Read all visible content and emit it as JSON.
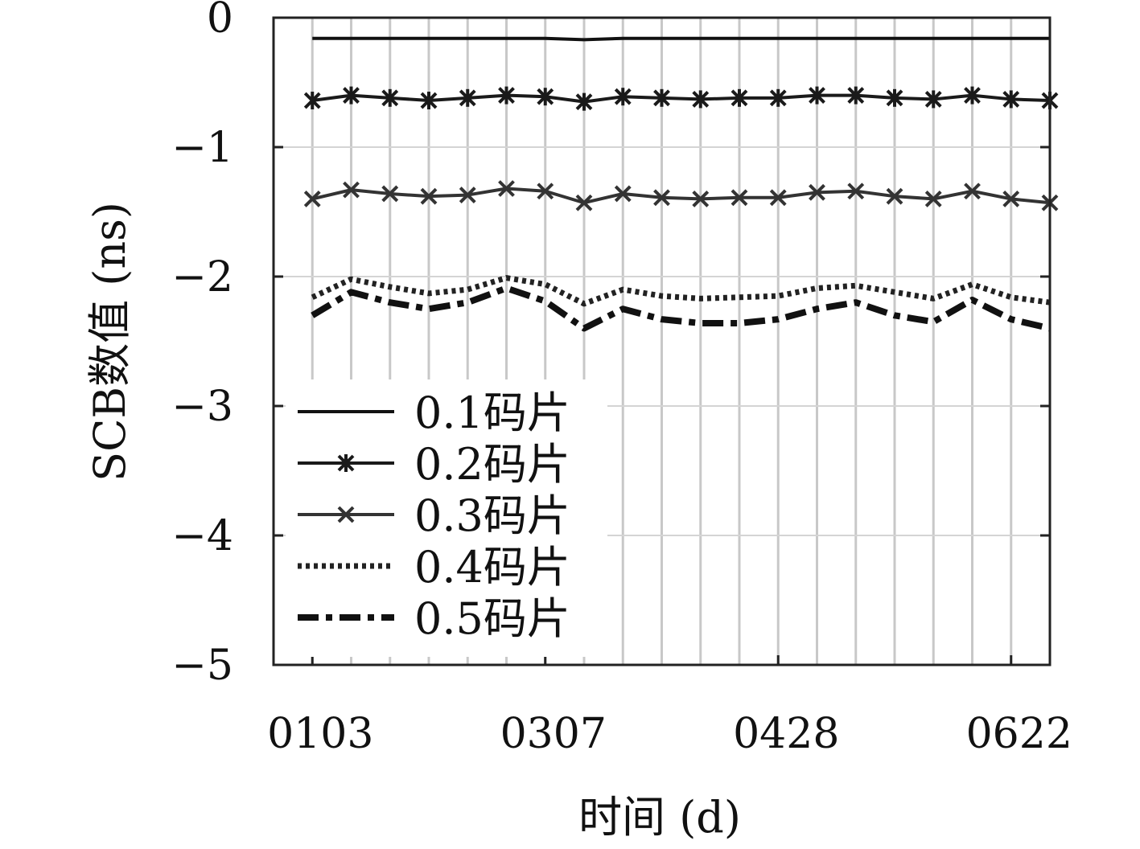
{
  "chart_data": {
    "type": "line",
    "xlabel": "时间 (d)",
    "ylabel": "SCB数值 (ns)",
    "x_tick_labels": [
      "0103",
      "0307",
      "0428",
      "0622"
    ],
    "y_tick_labels": [
      "0",
      "−1",
      "−2",
      "−3",
      "−4",
      "−5"
    ],
    "y_ticks": [
      0,
      -1,
      -2,
      -3,
      -4,
      -5
    ],
    "ylim": [
      -5,
      0
    ],
    "grid": true,
    "legend_position": "bottom-left",
    "x_index": [
      1,
      2,
      3,
      4,
      5,
      6,
      7,
      8,
      9,
      10,
      11,
      12,
      13,
      14,
      15,
      16,
      17,
      18,
      19,
      20
    ],
    "x_tick_index": [
      1,
      7,
      13,
      19
    ],
    "xlim": [
      0,
      20
    ],
    "series": [
      {
        "name": "0.1码片",
        "style": "solid",
        "marker": "none",
        "color": "#111111",
        "values": [
          -0.16,
          -0.16,
          -0.16,
          -0.16,
          -0.16,
          -0.16,
          -0.16,
          -0.17,
          -0.16,
          -0.16,
          -0.16,
          -0.16,
          -0.16,
          -0.16,
          -0.16,
          -0.16,
          -0.16,
          -0.16,
          -0.16,
          -0.16
        ]
      },
      {
        "name": "0.2码片",
        "style": "solid",
        "marker": "asterisk",
        "color": "#1a1a1a",
        "values": [
          -0.64,
          -0.6,
          -0.62,
          -0.64,
          -0.62,
          -0.6,
          -0.61,
          -0.65,
          -0.61,
          -0.62,
          -0.63,
          -0.62,
          -0.62,
          -0.6,
          -0.6,
          -0.62,
          -0.63,
          -0.6,
          -0.63,
          -0.64
        ]
      },
      {
        "name": "0.3码片",
        "style": "solid",
        "marker": "x",
        "color": "#333333",
        "values": [
          -1.4,
          -1.33,
          -1.36,
          -1.38,
          -1.37,
          -1.32,
          -1.34,
          -1.43,
          -1.36,
          -1.39,
          -1.4,
          -1.39,
          -1.39,
          -1.35,
          -1.34,
          -1.38,
          -1.4,
          -1.34,
          -1.4,
          -1.43
        ]
      },
      {
        "name": "0.4码片",
        "style": "dotted",
        "marker": "none",
        "color": "#222222",
        "values": [
          -2.16,
          -2.02,
          -2.08,
          -2.13,
          -2.1,
          -2.01,
          -2.06,
          -2.21,
          -2.1,
          -2.15,
          -2.17,
          -2.16,
          -2.15,
          -2.09,
          -2.07,
          -2.12,
          -2.17,
          -2.06,
          -2.16,
          -2.2
        ]
      },
      {
        "name": "0.5码片",
        "style": "dashdot",
        "marker": "none",
        "color": "#111111",
        "values": [
          -2.3,
          -2.12,
          -2.2,
          -2.25,
          -2.2,
          -2.09,
          -2.19,
          -2.4,
          -2.25,
          -2.33,
          -2.36,
          -2.36,
          -2.33,
          -2.25,
          -2.2,
          -2.3,
          -2.35,
          -2.18,
          -2.33,
          -2.4
        ]
      }
    ]
  }
}
